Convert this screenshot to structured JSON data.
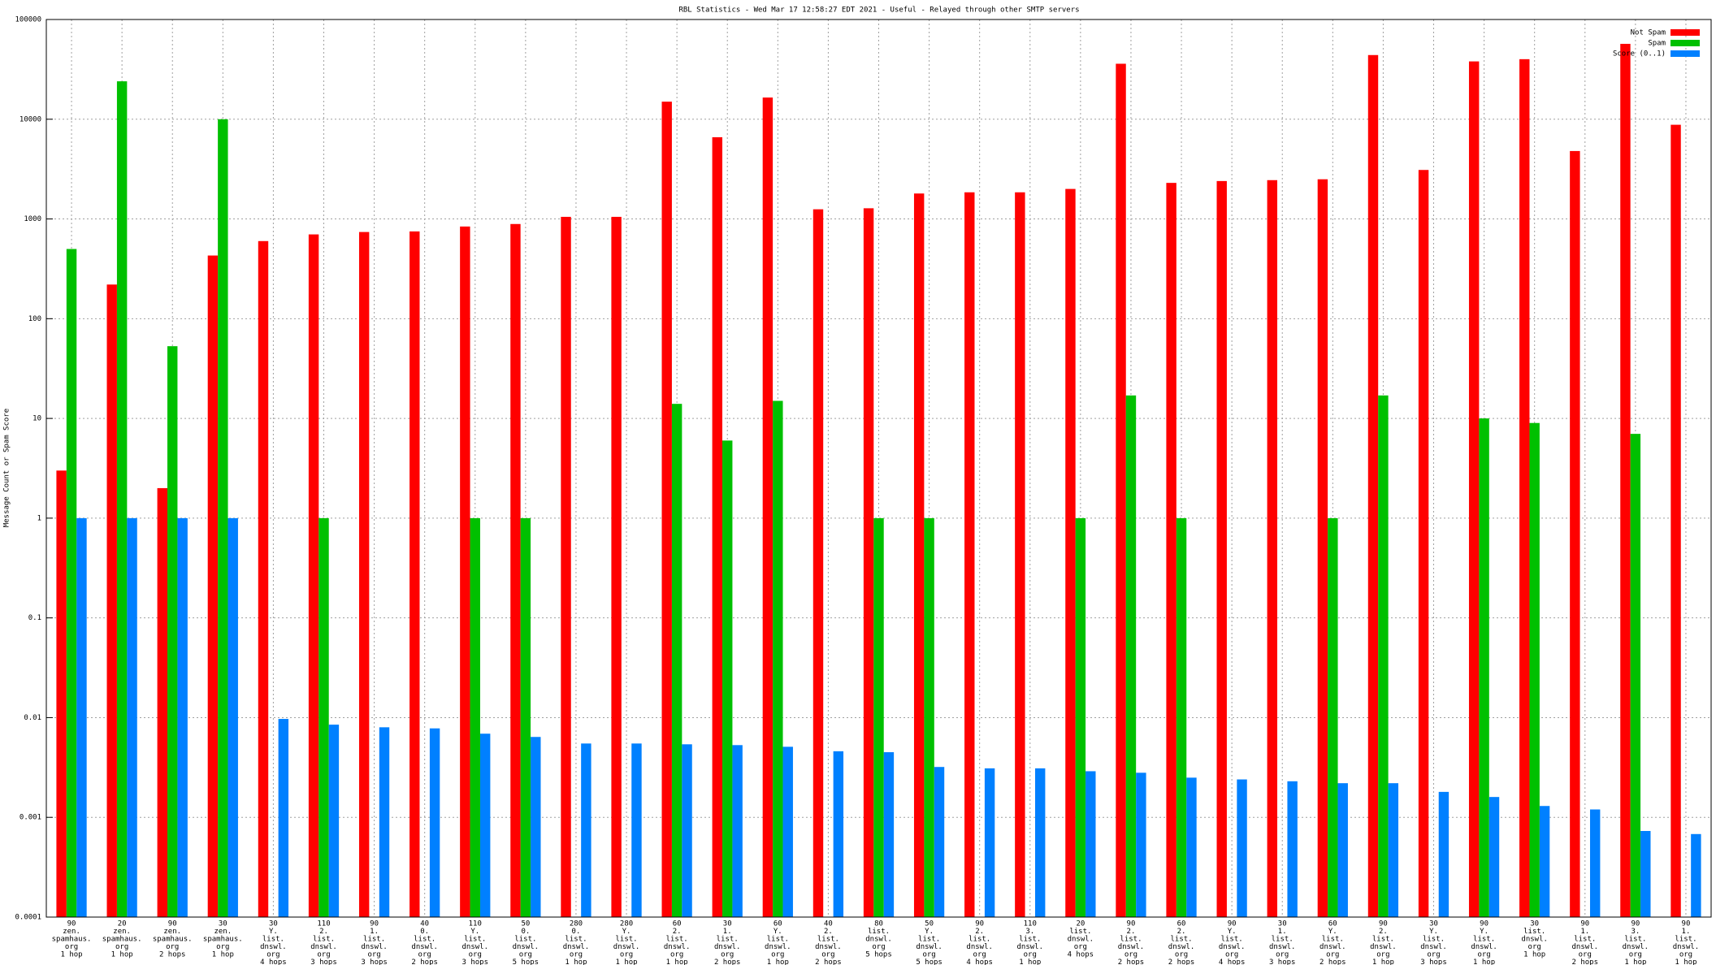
{
  "chart_data": {
    "type": "bar",
    "title": "RBL Statistics - Wed Mar 17 12:58:27 EDT 2021 - Useful - Relayed through other SMTP servers",
    "ylabel": "Message Count or Spam Score",
    "log_scale": true,
    "grid": true,
    "legend": "upper right",
    "ylim": [
      0.0001,
      100000
    ],
    "yticks": [
      0.0001,
      0.001,
      0.01,
      0.1,
      1,
      10,
      100,
      1000,
      10000,
      100000
    ],
    "categories": [
      [
        "90",
        "zen.",
        "spamhaus.",
        "org",
        "1 hop"
      ],
      [
        "20",
        "zen.",
        "spamhaus.",
        "org",
        "1 hop"
      ],
      [
        "90",
        "zen.",
        "spamhaus.",
        "org",
        "2 hops"
      ],
      [
        "30",
        "zen.",
        "spamhaus.",
        "org",
        "1 hop"
      ],
      [
        "30",
        "Y.",
        "list.",
        "dnswl.",
        "org",
        "4 hops"
      ],
      [
        "110",
        "2.",
        "list.",
        "dnswl.",
        "org",
        "3 hops"
      ],
      [
        "90",
        "1.",
        "list.",
        "dnswl.",
        "org",
        "3 hops"
      ],
      [
        "40",
        "0.",
        "list.",
        "dnswl.",
        "org",
        "2 hops"
      ],
      [
        "110",
        "Y.",
        "list.",
        "dnswl.",
        "org",
        "3 hops"
      ],
      [
        "50",
        "0.",
        "list.",
        "dnswl.",
        "org",
        "5 hops"
      ],
      [
        "280",
        "0.",
        "list.",
        "dnswl.",
        "org",
        "1 hop"
      ],
      [
        "280",
        "Y.",
        "list.",
        "dnswl.",
        "org",
        "1 hop"
      ],
      [
        "60",
        "2.",
        "list.",
        "dnswl.",
        "org",
        "1 hop"
      ],
      [
        "30",
        "1.",
        "list.",
        "dnswl.",
        "org",
        "2 hops"
      ],
      [
        "60",
        "Y.",
        "list.",
        "dnswl.",
        "org",
        "1 hop"
      ],
      [
        "40",
        "2.",
        "list.",
        "dnswl.",
        "org",
        "2 hops"
      ],
      [
        "80",
        "list.",
        "dnswl.",
        "org",
        "5 hops"
      ],
      [
        "50",
        "Y.",
        "list.",
        "dnswl.",
        "org",
        "5 hops"
      ],
      [
        "90",
        "2.",
        "list.",
        "dnswl.",
        "org",
        "4 hops"
      ],
      [
        "110",
        "3.",
        "list.",
        "dnswl.",
        "org",
        "1 hop"
      ],
      [
        "20",
        "list.",
        "dnswl.",
        "org",
        "4 hops"
      ],
      [
        "90",
        "2.",
        "list.",
        "dnswl.",
        "org",
        "2 hops"
      ],
      [
        "60",
        "2.",
        "list.",
        "dnswl.",
        "org",
        "2 hops"
      ],
      [
        "90",
        "Y.",
        "list.",
        "dnswl.",
        "org",
        "4 hops"
      ],
      [
        "30",
        "1.",
        "list.",
        "dnswl.",
        "org",
        "3 hops"
      ],
      [
        "60",
        "Y.",
        "list.",
        "dnswl.",
        "org",
        "2 hops"
      ],
      [
        "90",
        "2.",
        "list.",
        "dnswl.",
        "org",
        "1 hop"
      ],
      [
        "30",
        "Y.",
        "list.",
        "dnswl.",
        "org",
        "3 hops"
      ],
      [
        "90",
        "Y.",
        "list.",
        "dnswl.",
        "org",
        "1 hop"
      ],
      [
        "30",
        "list.",
        "dnswl.",
        "org",
        "1 hop"
      ],
      [
        "90",
        "1.",
        "list.",
        "dnswl.",
        "org",
        "2 hops"
      ],
      [
        "90",
        "3.",
        "list.",
        "dnswl.",
        "org",
        "1 hop"
      ],
      [
        "90",
        "1.",
        "list.",
        "dnswl.",
        "org",
        "1 hop"
      ]
    ],
    "series": [
      {
        "name": "Not Spam",
        "color": "#ff0000",
        "values": [
          3,
          220,
          2,
          430,
          600,
          700,
          740,
          750,
          840,
          890,
          1050,
          1050,
          15000,
          6600,
          16500,
          1250,
          1280,
          1800,
          1850,
          1850,
          2000,
          36000,
          2300,
          2400,
          2450,
          2500,
          44000,
          3100,
          38000,
          40000,
          4800,
          57000,
          8800
        ]
      },
      {
        "name": "Spam",
        "color": "#00c000",
        "values": [
          500,
          24000,
          53,
          10000,
          null,
          1,
          null,
          null,
          1,
          1,
          null,
          null,
          14,
          6,
          15,
          null,
          1,
          1,
          null,
          null,
          1,
          17,
          1,
          null,
          null,
          1,
          17,
          null,
          10,
          9,
          null,
          7,
          null
        ]
      },
      {
        "name": "Score (0..1)",
        "color": "#0080ff",
        "values": [
          1,
          1,
          1,
          1,
          0.0097,
          0.0085,
          0.008,
          0.0078,
          0.0069,
          0.0064,
          0.0055,
          0.0055,
          0.0054,
          0.0053,
          0.0051,
          0.0046,
          0.0045,
          0.0032,
          0.0031,
          0.0031,
          0.0029,
          0.0028,
          0.0025,
          0.0024,
          0.0023,
          0.0022,
          0.0022,
          0.0018,
          0.0016,
          0.0013,
          0.0012,
          0.00073,
          0.00068
        ]
      }
    ]
  }
}
